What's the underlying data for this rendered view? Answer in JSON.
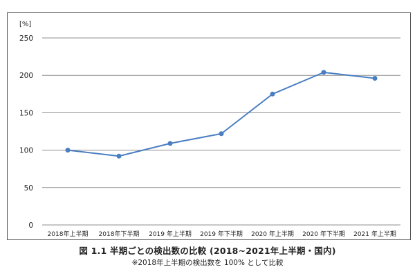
{
  "chart_data": {
    "type": "line",
    "unit_label": "[%]",
    "categories": [
      "2018年上半期",
      "2018年下半期",
      "2019 年上半期",
      "2019 年下半期",
      "2020 年上半期",
      "2020 年下半期",
      "2021 年上半期"
    ],
    "series": [
      {
        "values": [
          100,
          92,
          109,
          122,
          175,
          204,
          196
        ],
        "color": "#4a7ec2"
      }
    ],
    "ylim": [
      0,
      250
    ],
    "yticks": [
      0,
      50,
      100,
      150,
      200,
      250
    ],
    "grid": true,
    "gridline_color": "#8c8c8c"
  },
  "caption": {
    "main": "図 1.1 半期ごとの検出数の比較 (2018~2021年上半期・国内)",
    "note": "※2018年上半期の検出数を 100% として比較"
  }
}
